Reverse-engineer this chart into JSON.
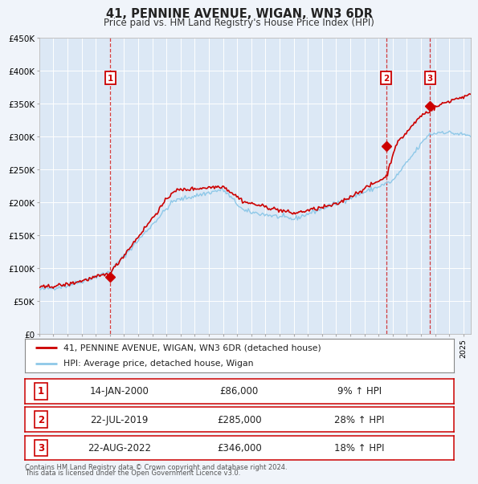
{
  "title": "41, PENNINE AVENUE, WIGAN, WN3 6DR",
  "subtitle": "Price paid vs. HM Land Registry's House Price Index (HPI)",
  "bg_color": "#f0f4fa",
  "plot_bg_color": "#dce8f5",
  "grid_color": "#ffffff",
  "sale1": {
    "date_num": 2000.04,
    "price": 86000,
    "label": "1",
    "date_str": "14-JAN-2000",
    "pct": "9%"
  },
  "sale2": {
    "date_num": 2019.55,
    "price": 285000,
    "label": "2",
    "date_str": "22-JUL-2019",
    "pct": "28%"
  },
  "sale3": {
    "date_num": 2022.64,
    "price": 346000,
    "label": "3",
    "date_str": "22-AUG-2022",
    "pct": "18%"
  },
  "legend_label1": "41, PENNINE AVENUE, WIGAN, WN3 6DR (detached house)",
  "legend_label2": "HPI: Average price, detached house, Wigan",
  "footer1": "Contains HM Land Registry data © Crown copyright and database right 2024.",
  "footer2": "This data is licensed under the Open Government Licence v3.0.",
  "xmin": 1995.0,
  "xmax": 2025.5,
  "ymin": 0,
  "ymax": 450000,
  "red_line_color": "#cc0000",
  "blue_line_color": "#8ec8e8",
  "dashed_line_color": "#cc0000",
  "sale_dot_color": "#cc0000",
  "box_color": "#cc0000",
  "table_border_color": "#cc0000",
  "legend_border_color": "#888888"
}
